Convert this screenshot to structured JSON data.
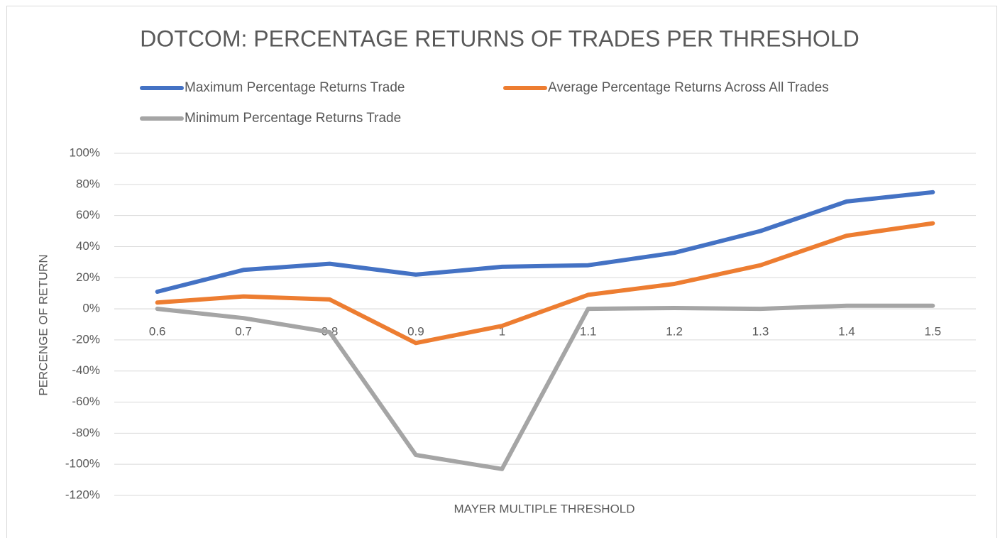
{
  "chart_data": {
    "type": "line",
    "title": "DOTCOM: PERCENTAGE RETURNS OF TRADES PER THRESHOLD",
    "x_label": "MAYER MULTIPLE THRESHOLD",
    "y_label": "PERCENGE OF RETURN",
    "categories": [
      "0.6",
      "0.7",
      "0.8",
      "0.9",
      "1",
      "1.1",
      "1.2",
      "1.3",
      "1.4",
      "1.5"
    ],
    "series": [
      {
        "name": "Maximum Percentage Returns Trade",
        "color": "#4472c4",
        "values": [
          11,
          25,
          29,
          22,
          27,
          28,
          36,
          50,
          69,
          75
        ]
      },
      {
        "name": "Average Percentage Returns Across All Trades",
        "color": "#ed7d31",
        "values": [
          4,
          8,
          6,
          -22,
          -11,
          9,
          16,
          28,
          47,
          55
        ]
      },
      {
        "name": "Minimum Percentage Returns Trade",
        "color": "#a5a5a5",
        "values": [
          0,
          -6,
          -15,
          -94,
          -103,
          0,
          0.5,
          0,
          2,
          2
        ]
      }
    ],
    "ylim": [
      -120,
      100
    ],
    "yticks": [
      {
        "value": -120,
        "label": "-120%"
      },
      {
        "value": -100,
        "label": "-100%"
      },
      {
        "value": -80,
        "label": "-80%"
      },
      {
        "value": -60,
        "label": "-60%"
      },
      {
        "value": -40,
        "label": "-40%"
      },
      {
        "value": -20,
        "label": "-20%"
      },
      {
        "value": 0,
        "label": "0%"
      },
      {
        "value": 20,
        "label": "20%"
      },
      {
        "value": 40,
        "label": "40%"
      },
      {
        "value": 60,
        "label": "60%"
      },
      {
        "value": 80,
        "label": "80%"
      },
      {
        "value": 100,
        "label": "100%"
      }
    ],
    "grid": true,
    "legend": "top"
  }
}
